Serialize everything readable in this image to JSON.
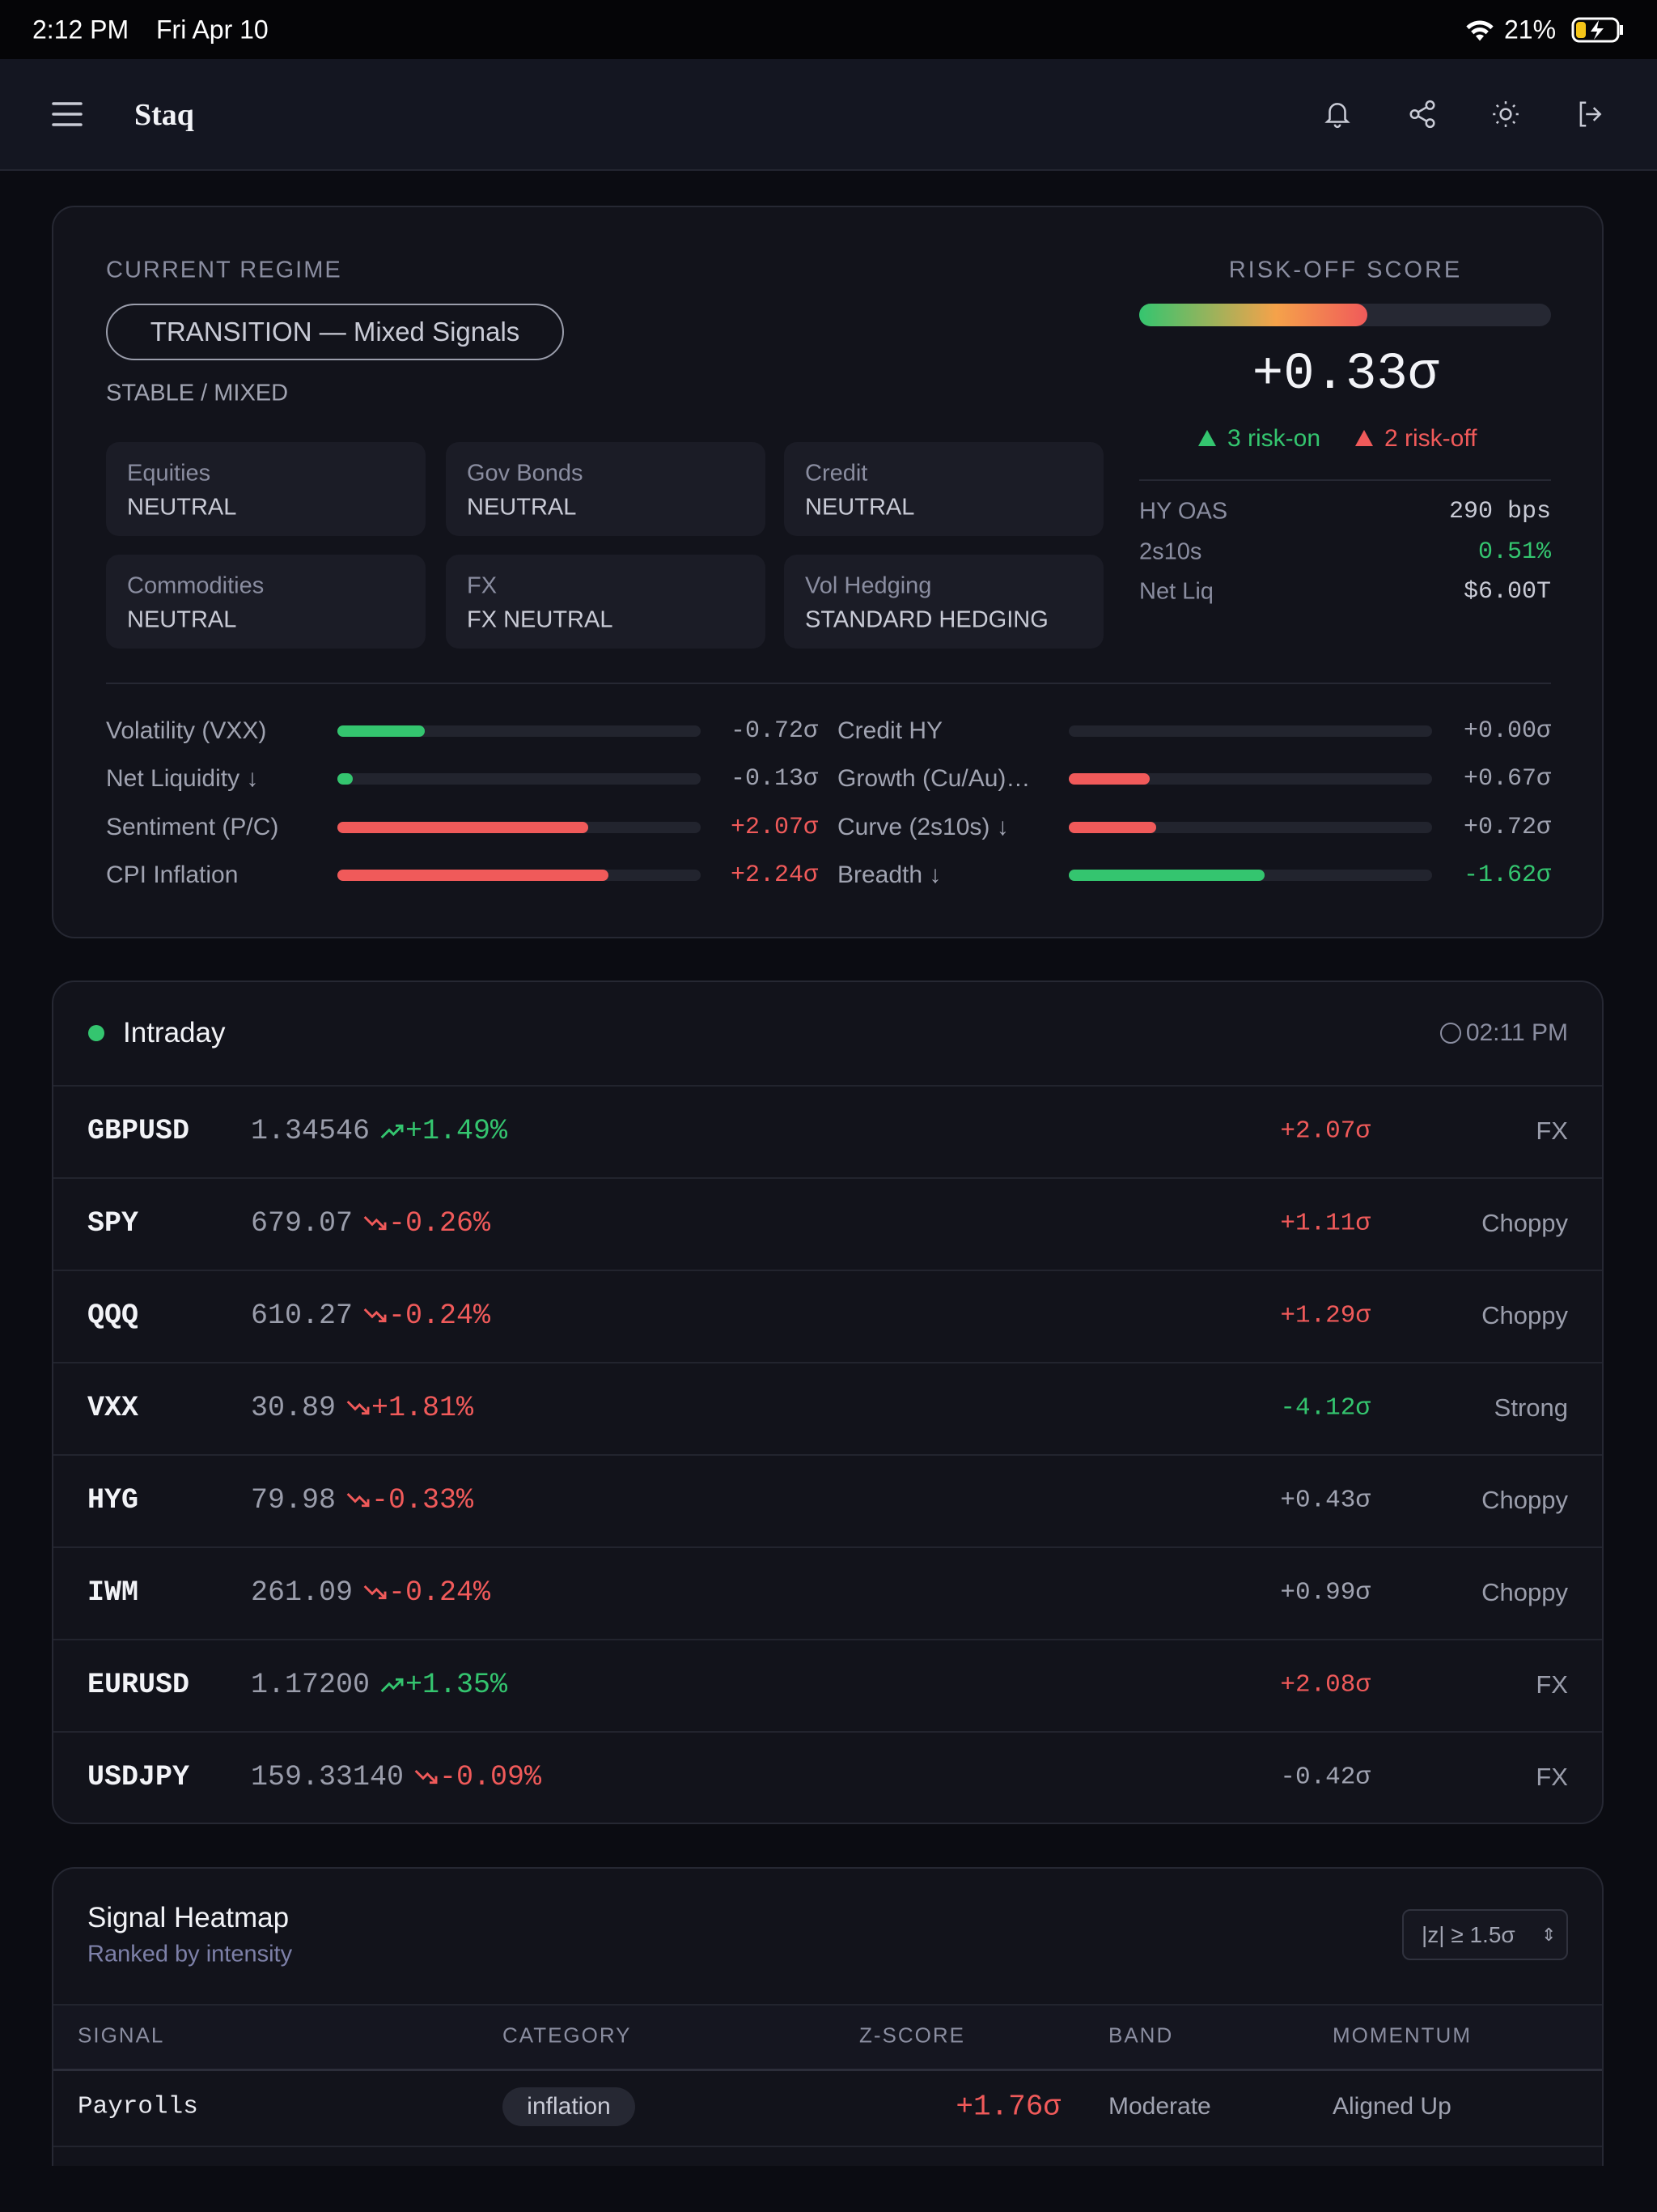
{
  "status_bar": {
    "time": "2:12 PM",
    "date": "Fri Apr 10",
    "battery": "21%"
  },
  "nav": {
    "brand": "Staq"
  },
  "regime": {
    "label": "CURRENT REGIME",
    "name": "TRANSITION — Mixed Signals",
    "state": "STABLE / MIXED",
    "assets": [
      {
        "name": "Equities",
        "status": "NEUTRAL"
      },
      {
        "name": "Gov Bonds",
        "status": "NEUTRAL"
      },
      {
        "name": "Credit",
        "status": "NEUTRAL"
      },
      {
        "name": "Commodities",
        "status": "NEUTRAL"
      },
      {
        "name": "FX",
        "status": "FX NEUTRAL"
      },
      {
        "name": "Vol Hedging",
        "status": "STANDARD HEDGING"
      }
    ]
  },
  "risk_score": {
    "label": "RISK-OFF SCORE",
    "value": 0.33,
    "value_label": "+0.33σ",
    "range": [
      -3,
      3
    ],
    "risk_on": "3 risk-on",
    "risk_off": "2 risk-off",
    "metrics": [
      {
        "name": "HY OAS",
        "value": "290 bps",
        "color": "#c9cbd6"
      },
      {
        "name": "2s10s",
        "value": "0.51%",
        "color": "#34c56f"
      },
      {
        "name": "Net Liq",
        "value": "$6.00T",
        "color": "#c9cbd6"
      }
    ]
  },
  "signals": {
    "range": [
      0,
      3
    ],
    "items": [
      {
        "name": "Volatility (VXX)",
        "value": -0.72,
        "label": "-0.72σ",
        "label_color": "#a0a3b1"
      },
      {
        "name": "Net Liquidity ↓",
        "value": -0.13,
        "label": "-0.13σ",
        "label_color": "#a0a3b1"
      },
      {
        "name": "Sentiment (P/C)",
        "value": 2.07,
        "label": "+2.07σ",
        "label_color": "#f05a5a"
      },
      {
        "name": "CPI Inflation",
        "value": 2.24,
        "label": "+2.24σ",
        "label_color": "#f05a5a"
      },
      {
        "name": "Credit HY",
        "value": 0,
        "label": "+0.00σ",
        "label_color": "#a0a3b1"
      },
      {
        "name": "Growth (Cu/Au)…",
        "value": 0.67,
        "label": "+0.67σ",
        "label_color": "#a0a3b1"
      },
      {
        "name": "Curve (2s10s) ↓",
        "value": 0.72,
        "label": "+0.72σ",
        "label_color": "#a0a3b1"
      },
      {
        "name": "Breadth ↓",
        "value": -1.62,
        "label": "-1.62σ",
        "label_color": "#34c56f"
      }
    ]
  },
  "intraday": {
    "title": "Intraday",
    "time": "02:11 PM",
    "rows": [
      {
        "ticker": "GBPUSD",
        "price": "1.34546",
        "change": "+1.49%",
        "direction": "up",
        "change_color": "#34c56f",
        "z": "+2.07σ",
        "z_color": "#f05a5a",
        "regime": "FX"
      },
      {
        "ticker": "SPY",
        "price": "679.07",
        "change": "-0.26%",
        "direction": "down",
        "change_color": "#f05a5a",
        "z": "+1.11σ",
        "z_color": "#f05a5a",
        "regime": "Choppy"
      },
      {
        "ticker": "QQQ",
        "price": "610.27",
        "change": "-0.24%",
        "direction": "down",
        "change_color": "#f05a5a",
        "z": "+1.29σ",
        "z_color": "#f05a5a",
        "regime": "Choppy"
      },
      {
        "ticker": "VXX",
        "price": "30.89",
        "change": "+1.81%",
        "direction": "down",
        "change_color": "#f05a5a",
        "z": "-4.12σ",
        "z_color": "#34c56f",
        "regime": "Strong"
      },
      {
        "ticker": "HYG",
        "price": "79.98",
        "change": "-0.33%",
        "direction": "down",
        "change_color": "#f05a5a",
        "z": "+0.43σ",
        "z_color": "#a0a3b1",
        "regime": "Choppy"
      },
      {
        "ticker": "IWM",
        "price": "261.09",
        "change": "-0.24%",
        "direction": "down",
        "change_color": "#f05a5a",
        "z": "+0.99σ",
        "z_color": "#a0a3b1",
        "regime": "Choppy"
      },
      {
        "ticker": "EURUSD",
        "price": "1.17200",
        "change": "+1.35%",
        "direction": "up",
        "change_color": "#34c56f",
        "z": "+2.08σ",
        "z_color": "#f05a5a",
        "regime": "FX"
      },
      {
        "ticker": "USDJPY",
        "price": "159.33140",
        "change": "-0.09%",
        "direction": "down",
        "change_color": "#f05a5a",
        "z": "-0.42σ",
        "z_color": "#a0a3b1",
        "regime": "FX"
      }
    ]
  },
  "heatmap": {
    "title": "Signal Heatmap",
    "subtitle": "Ranked by intensity",
    "filter": "|z| ≥ 1.5σ",
    "columns": [
      "SIGNAL",
      "CATEGORY",
      "Z-SCORE",
      "BAND",
      "MOMENTUM"
    ],
    "rows": [
      [
        "Payrolls",
        "inflation",
        "+1.76σ",
        "Moderate",
        "Aligned Up"
      ]
    ]
  }
}
